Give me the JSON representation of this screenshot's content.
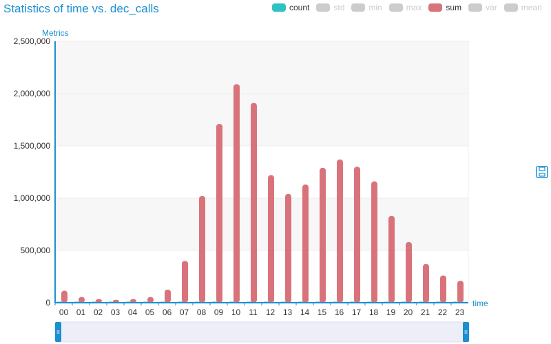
{
  "title": "Statistics of time vs. dec_calls",
  "legend": [
    {
      "label": "count",
      "color": "#2fc2c2",
      "active": true
    },
    {
      "label": "std",
      "color": "#cccccc",
      "active": false
    },
    {
      "label": "min",
      "color": "#cccccc",
      "active": false
    },
    {
      "label": "max",
      "color": "#cccccc",
      "active": false
    },
    {
      "label": "sum",
      "color": "#d9737b",
      "active": true
    },
    {
      "label": "var",
      "color": "#cccccc",
      "active": false
    },
    {
      "label": "mean",
      "color": "#cccccc",
      "active": false
    }
  ],
  "toolbox": {
    "save_icon": "save-icon"
  },
  "colors": {
    "axis": "#1a8fd1",
    "grid": "#eeeeee",
    "plot_band": "#f7f7f7",
    "zoom_fill": "#eeeef8"
  },
  "chart_data": {
    "type": "bar",
    "xlabel": "time",
    "ylabel": "Metrics",
    "ylim": [
      0,
      2500000
    ],
    "y_ticks": [
      0,
      500000,
      1000000,
      1500000,
      2000000,
      2500000
    ],
    "y_tick_labels": [
      "0",
      "500,000",
      "1,000,000",
      "1,500,000",
      "2,000,000",
      "2,500,000"
    ],
    "categories": [
      "00",
      "01",
      "02",
      "03",
      "04",
      "05",
      "06",
      "07",
      "08",
      "09",
      "10",
      "11",
      "12",
      "13",
      "14",
      "15",
      "16",
      "17",
      "18",
      "19",
      "20",
      "21",
      "22",
      "23"
    ],
    "series": [
      {
        "name": "count",
        "color": "#2fc2c2",
        "values": [
          1000,
          800,
          600,
          500,
          500,
          700,
          1200,
          2500,
          5000,
          7000,
          8000,
          7500,
          6000,
          5500,
          5500,
          6000,
          6500,
          6000,
          5500,
          4500,
          3500,
          2500,
          2000,
          1500
        ]
      },
      {
        "name": "sum",
        "color": "#d9737b",
        "values": [
          115000,
          55000,
          35000,
          28000,
          35000,
          55000,
          125000,
          400000,
          1020000,
          1710000,
          2090000,
          1910000,
          1220000,
          1040000,
          1130000,
          1290000,
          1370000,
          1300000,
          1160000,
          830000,
          580000,
          370000,
          260000,
          210000
        ]
      }
    ],
    "grid": true,
    "legend_position": "top-right"
  }
}
